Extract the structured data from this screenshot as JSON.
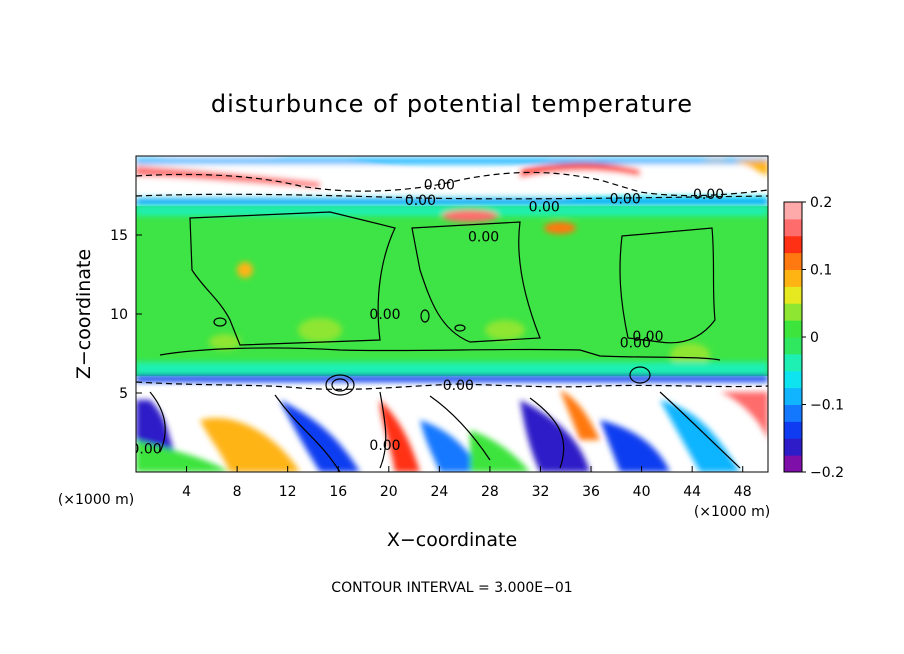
{
  "chart_data": {
    "type": "heatmap",
    "title": "disturbunce of potential temperature",
    "xlabel": "X−coordinate",
    "ylabel": "Z−coordinate",
    "x_unit": "(×1000 m)",
    "y_unit": "(×1000 m)",
    "footer": "CONTOUR INTERVAL = 3.000E−01",
    "xlim": [
      0,
      50
    ],
    "ylim": [
      0,
      20
    ],
    "x_ticks": [
      4,
      8,
      12,
      16,
      20,
      24,
      28,
      32,
      36,
      40,
      44,
      48
    ],
    "y_ticks": [
      5,
      10,
      15
    ],
    "colorbar": {
      "min": -0.2,
      "max": 0.2,
      "ticks": [
        0.2,
        0.1,
        0,
        -0.1,
        -0.2
      ],
      "tick_labels": [
        "0.2",
        "0.1",
        "0",
        "−0.1",
        "−0.2"
      ],
      "colors": [
        "#7e0fa8",
        "#2d1cc8",
        "#0f3cf0",
        "#1478ff",
        "#10b4ff",
        "#0ee4f0",
        "#1ef0b4",
        "#30e860",
        "#3ce43c",
        "#8ee632",
        "#e6e820",
        "#ffb414",
        "#ff7810",
        "#ff3014",
        "#ff6c6c",
        "#ffaaaa"
      ]
    },
    "contour_labels": [
      {
        "text": "0.00",
        "x": 24.0,
        "z": 18.2
      },
      {
        "text": "0.00",
        "x": 22.5,
        "z": 17.2
      },
      {
        "text": "0.00",
        "x": 27.5,
        "z": 14.9
      },
      {
        "text": "0.00",
        "x": 32.3,
        "z": 16.8
      },
      {
        "text": "0.00",
        "x": 38.7,
        "z": 17.3
      },
      {
        "text": "0.00",
        "x": 45.3,
        "z": 17.6
      },
      {
        "text": "0.00",
        "x": 19.7,
        "z": 10.0
      },
      {
        "text": "0.00",
        "x": 40.5,
        "z": 8.6
      },
      {
        "text": "0.00",
        "x": 39.5,
        "z": 8.2
      },
      {
        "text": "0.00",
        "x": 25.5,
        "z": 5.5
      },
      {
        "text": "0.00",
        "x": 19.7,
        "z": 1.7
      },
      {
        "text": "0.00",
        "x": 0.8,
        "z": 1.5
      }
    ]
  }
}
